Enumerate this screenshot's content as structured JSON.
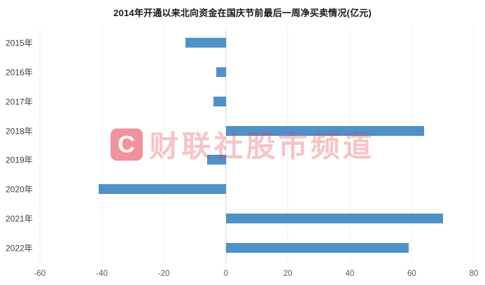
{
  "chart_data": {
    "type": "bar",
    "orientation": "horizontal",
    "title": "2014年开通以来北向资金在国庆节前最后一周净买卖情况(亿元)",
    "categories": [
      "2015年",
      "2016年",
      "2017年",
      "2018年",
      "2019年",
      "2020年",
      "2021年",
      "2022年"
    ],
    "values": [
      -13,
      -3,
      -4,
      64,
      -6,
      -41,
      70,
      59
    ],
    "xlabel": "",
    "ylabel": "",
    "xlim": [
      -60,
      80
    ],
    "xticks": [
      -60,
      -40,
      -20,
      0,
      20,
      40,
      60,
      80
    ],
    "grid": true,
    "legend": "none",
    "bar_color": "#4f91c9",
    "gridline_color": "#ededed",
    "zero_line_color": "#d9d9d9"
  },
  "watermark": {
    "logo": "C",
    "text": "财联社股市频道",
    "color": "#e8394a"
  }
}
